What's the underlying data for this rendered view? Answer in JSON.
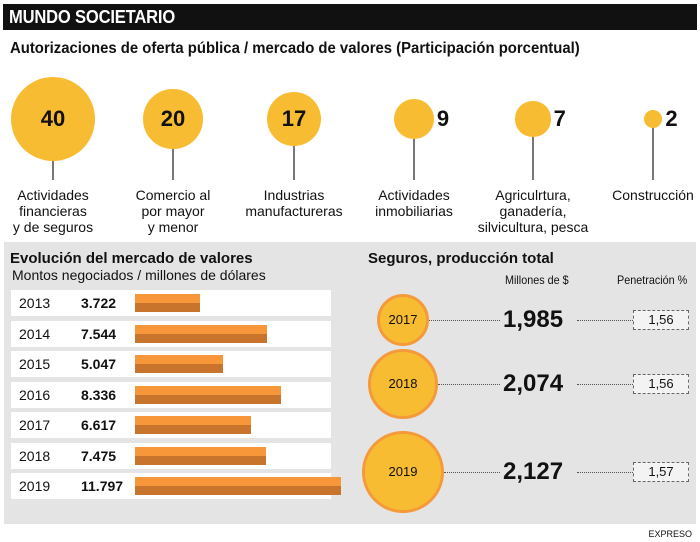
{
  "header": {
    "title": "MUNDO SOCIETARIO"
  },
  "chart_data": [
    {
      "type": "bubble",
      "title": "Autorizaciones de oferta pública / mercado de valores (Participación porcentual)",
      "categories": [
        "Actividades financieras y de seguros",
        "Comercio al por mayor y menor",
        "Industrias manufactureras",
        "Actividades inmobiliarias",
        "Agriculrtura, ganadería, silvicultura, pesca",
        "Construcción"
      ],
      "label_lines": [
        [
          "Actividades",
          "financieras",
          "y de seguros"
        ],
        [
          "Comercio al",
          "por mayor",
          "y menor"
        ],
        [
          "Industrias",
          "manufactureras"
        ],
        [
          "Actividades",
          "inmobiliarias"
        ],
        [
          "Agriculrtura,",
          "ganadería,",
          "silvicultura, pesca"
        ],
        [
          "Construcción"
        ]
      ],
      "values": [
        40,
        20,
        17,
        9,
        7,
        2
      ]
    },
    {
      "type": "bar",
      "title": "Evolución del mercado de valores",
      "subtitle": "Montos negociados / millones de dólares",
      "categories": [
        "2013",
        "2014",
        "2015",
        "2016",
        "2017",
        "2018",
        "2019"
      ],
      "values": [
        3722,
        7544,
        5047,
        8336,
        6617,
        7475,
        11797
      ],
      "value_labels": [
        "3.722",
        "7.544",
        "5.047",
        "8.336",
        "6.617",
        "7.475",
        "11.797"
      ]
    },
    {
      "type": "table",
      "title": "Seguros, producción total",
      "columns": [
        "Millones de $",
        "Penetración %"
      ],
      "categories": [
        "2017",
        "2018",
        "2019"
      ],
      "produccion": [
        "1,985",
        "2,074",
        "2,127"
      ],
      "produccion_values": [
        1985,
        2074,
        2127
      ],
      "penetracion": [
        "1,56",
        "1,56",
        "1,57"
      ]
    }
  ],
  "footer": {
    "source": "EXPRESO"
  },
  "colors": {
    "circle": "#f7bc31",
    "bar_light": "#f8963a",
    "bar_dark": "#c8742c",
    "panel": "#e4e4e4"
  }
}
